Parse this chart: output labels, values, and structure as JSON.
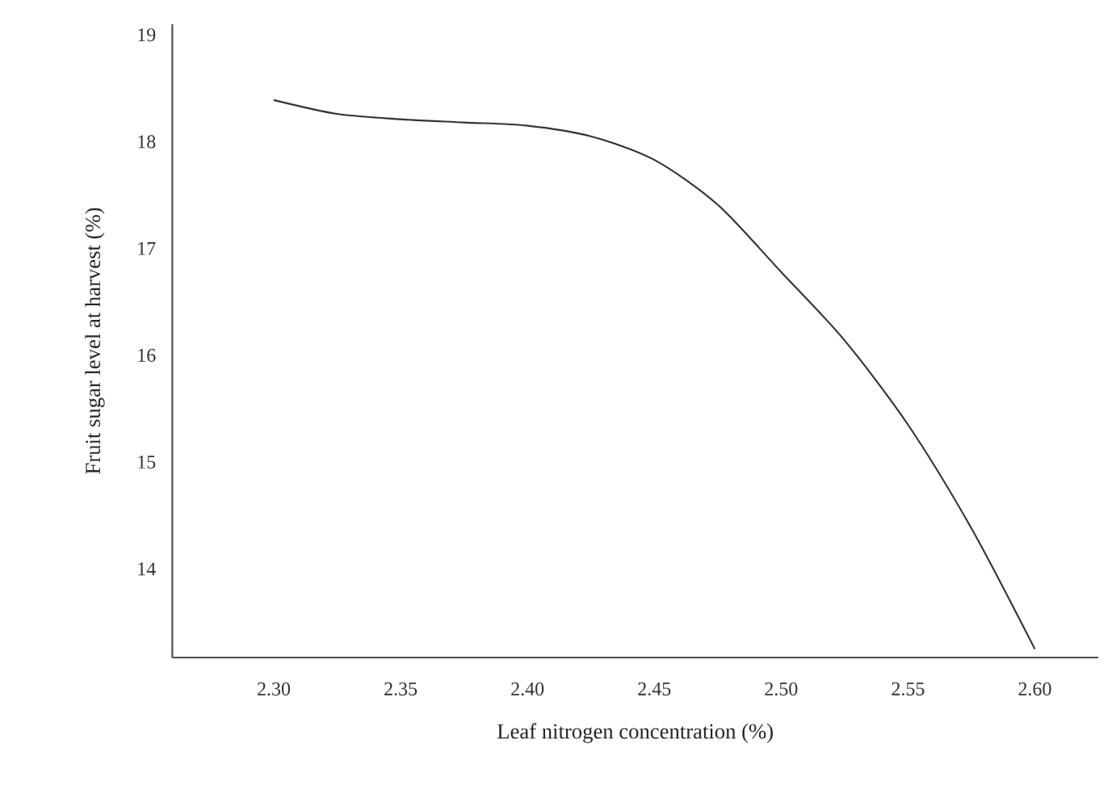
{
  "chart_data": {
    "type": "line",
    "xlabel": "Leaf nitrogen concentration (%)",
    "ylabel": "Fruit sugar level at harvest (%)",
    "x": [
      2.3,
      2.325,
      2.35,
      2.375,
      2.4,
      2.425,
      2.45,
      2.475,
      2.5,
      2.525,
      2.55,
      2.575,
      2.6
    ],
    "series": [
      {
        "color": "#333333",
        "values": [
          18.39,
          18.26,
          18.21,
          18.18,
          18.15,
          18.05,
          17.83,
          17.41,
          16.78,
          16.14,
          15.35,
          14.38,
          13.25
        ]
      }
    ],
    "xlim": [
      2.26,
      2.625
    ],
    "ylim": [
      13.17,
      19.1
    ],
    "xticks": [
      {
        "value": 2.3,
        "label": "2.30"
      },
      {
        "value": 2.35,
        "label": "2.35"
      },
      {
        "value": 2.4,
        "label": "2.40"
      },
      {
        "value": 2.45,
        "label": "2.45"
      },
      {
        "value": 2.5,
        "label": "2.50"
      },
      {
        "value": 2.55,
        "label": "2.55"
      },
      {
        "value": 2.6,
        "label": "2.60"
      }
    ],
    "yticks": [
      14,
      15,
      16,
      17,
      18,
      19
    ],
    "marker": "none",
    "line_style": "solid",
    "grid": false
  }
}
